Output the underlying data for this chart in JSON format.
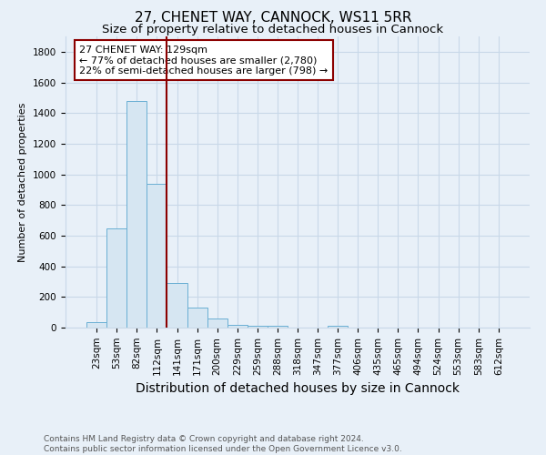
{
  "title": "27, CHENET WAY, CANNOCK, WS11 5RR",
  "subtitle": "Size of property relative to detached houses in Cannock",
  "xlabel": "Distribution of detached houses by size in Cannock",
  "ylabel": "Number of detached properties",
  "bar_labels": [
    "23sqm",
    "53sqm",
    "82sqm",
    "112sqm",
    "141sqm",
    "171sqm",
    "200sqm",
    "229sqm",
    "259sqm",
    "288sqm",
    "318sqm",
    "347sqm",
    "377sqm",
    "406sqm",
    "435sqm",
    "465sqm",
    "494sqm",
    "524sqm",
    "553sqm",
    "583sqm",
    "612sqm"
  ],
  "bar_values": [
    35,
    650,
    1480,
    940,
    290,
    130,
    60,
    20,
    10,
    10,
    0,
    0,
    10,
    0,
    0,
    0,
    0,
    0,
    0,
    0,
    0
  ],
  "bar_color": "#d6e6f2",
  "bar_edgecolor": "#6aafd4",
  "ylim": [
    0,
    1900
  ],
  "yticks": [
    0,
    200,
    400,
    600,
    800,
    1000,
    1200,
    1400,
    1600,
    1800
  ],
  "vline_x": 3.5,
  "vline_color": "#8b0000",
  "annotation_text": "27 CHENET WAY: 129sqm\n← 77% of detached houses are smaller (2,780)\n22% of semi-detached houses are larger (798) →",
  "annotation_box_color": "white",
  "annotation_box_edgecolor": "#8b0000",
  "footnote": "Contains HM Land Registry data © Crown copyright and database right 2024.\nContains public sector information licensed under the Open Government Licence v3.0.",
  "title_fontsize": 11,
  "subtitle_fontsize": 9.5,
  "xlabel_fontsize": 10,
  "ylabel_fontsize": 8,
  "tick_fontsize": 7.5,
  "annotation_fontsize": 8,
  "footnote_fontsize": 6.5,
  "grid_color": "#c8d8e8",
  "background_color": "#e8f0f8"
}
